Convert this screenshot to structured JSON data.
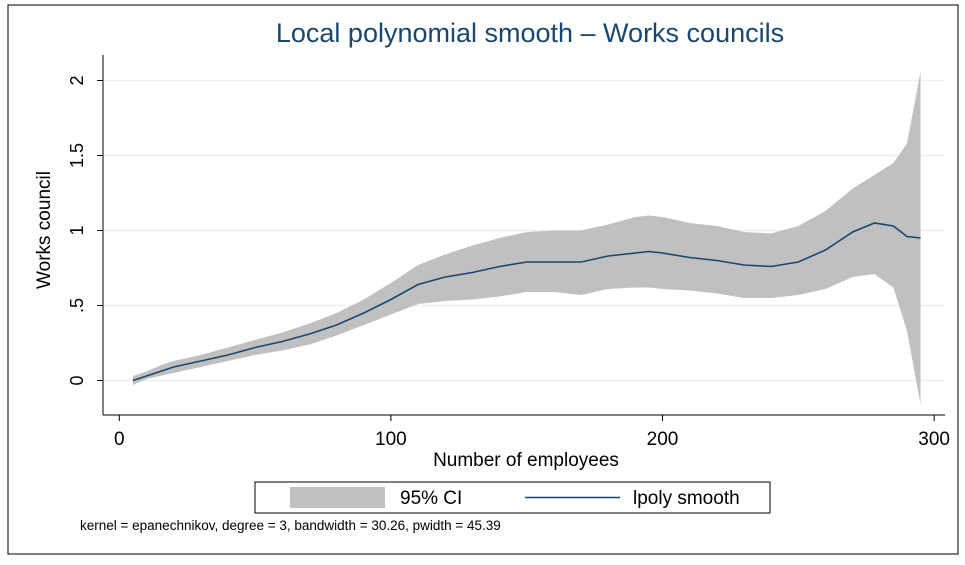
{
  "chart_data": {
    "type": "line",
    "title": "Local polynomial smooth – Works councils",
    "x_label": "Number of employees",
    "y_label": "Works council",
    "note": "kernel = epanechnikov, degree = 3, bandwidth = 30.26, pwidth = 45.39",
    "x": [
      5,
      10,
      15,
      20,
      30,
      40,
      50,
      60,
      70,
      80,
      90,
      100,
      110,
      120,
      130,
      140,
      150,
      160,
      170,
      180,
      190,
      195,
      200,
      210,
      220,
      230,
      240,
      250,
      260,
      270,
      278,
      285,
      290,
      295
    ],
    "series": [
      {
        "name": "95% CI",
        "color": "#c0c0c0",
        "upper": [
          0.03,
          0.06,
          0.1,
          0.13,
          0.17,
          0.22,
          0.27,
          0.32,
          0.38,
          0.45,
          0.54,
          0.65,
          0.77,
          0.84,
          0.9,
          0.95,
          0.99,
          1.0,
          1.0,
          1.04,
          1.09,
          1.1,
          1.09,
          1.05,
          1.03,
          0.99,
          0.98,
          1.03,
          1.13,
          1.28,
          1.37,
          1.45,
          1.58,
          2.06
        ],
        "lower": [
          -0.03,
          0.01,
          0.03,
          0.05,
          0.09,
          0.13,
          0.17,
          0.2,
          0.24,
          0.3,
          0.37,
          0.44,
          0.51,
          0.53,
          0.54,
          0.56,
          0.59,
          0.59,
          0.57,
          0.61,
          0.62,
          0.62,
          0.61,
          0.6,
          0.58,
          0.55,
          0.55,
          0.57,
          0.61,
          0.69,
          0.71,
          0.62,
          0.33,
          -0.16
        ]
      },
      {
        "name": "lpoly smooth",
        "color": "#1a476f",
        "values": [
          0.0,
          0.03,
          0.06,
          0.09,
          0.13,
          0.17,
          0.22,
          0.26,
          0.31,
          0.37,
          0.45,
          0.54,
          0.64,
          0.69,
          0.72,
          0.76,
          0.79,
          0.79,
          0.79,
          0.83,
          0.85,
          0.86,
          0.85,
          0.82,
          0.8,
          0.77,
          0.76,
          0.79,
          0.87,
          0.99,
          1.05,
          1.03,
          0.96,
          0.95
        ]
      }
    ],
    "xlim": [
      -6,
      304
    ],
    "ylim": [
      -0.23,
      2.17
    ],
    "xticks": [
      0,
      100,
      200,
      300
    ],
    "yticks": [
      0,
      {
        "value": 0.5,
        "label": ".5"
      },
      1,
      1.5,
      2
    ],
    "grid": true
  }
}
